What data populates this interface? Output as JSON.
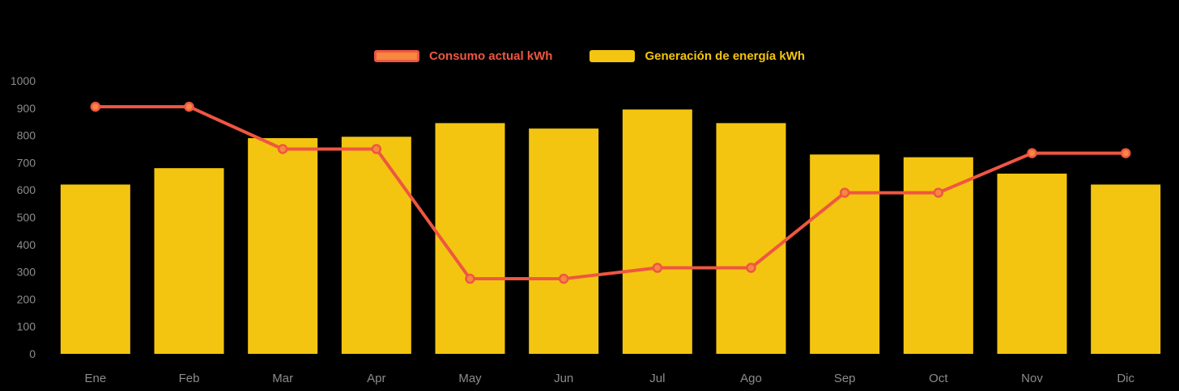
{
  "chart_data": {
    "type": "bar",
    "title": "",
    "categories": [
      "Ene",
      "Feb",
      "Mar",
      "Apr",
      "May",
      "Jun",
      "Jul",
      "Ago",
      "Sep",
      "Oct",
      "Nov",
      "Dic"
    ],
    "series": [
      {
        "name": "Consumo actual kWh",
        "type": "line",
        "color": "#ef5642",
        "point_fill": "#f6883f",
        "values": [
          905,
          905,
          750,
          750,
          275,
          275,
          315,
          315,
          590,
          590,
          735,
          735
        ]
      },
      {
        "name": "Generación de energía kWh",
        "type": "bar",
        "color": "#f3c510",
        "values": [
          620,
          680,
          790,
          795,
          845,
          825,
          895,
          845,
          730,
          720,
          660,
          620
        ]
      }
    ],
    "xlabel": "",
    "ylabel": "",
    "ylim": [
      0,
      1000
    ],
    "ytick_step": 100,
    "ytick_labels": [
      "0",
      "100",
      "200",
      "300",
      "400",
      "500",
      "600",
      "700",
      "800",
      "900",
      "1000"
    ],
    "grid": false,
    "legend_position": "top",
    "background": "#000000",
    "axis_label_color": "#8c8c8c"
  }
}
